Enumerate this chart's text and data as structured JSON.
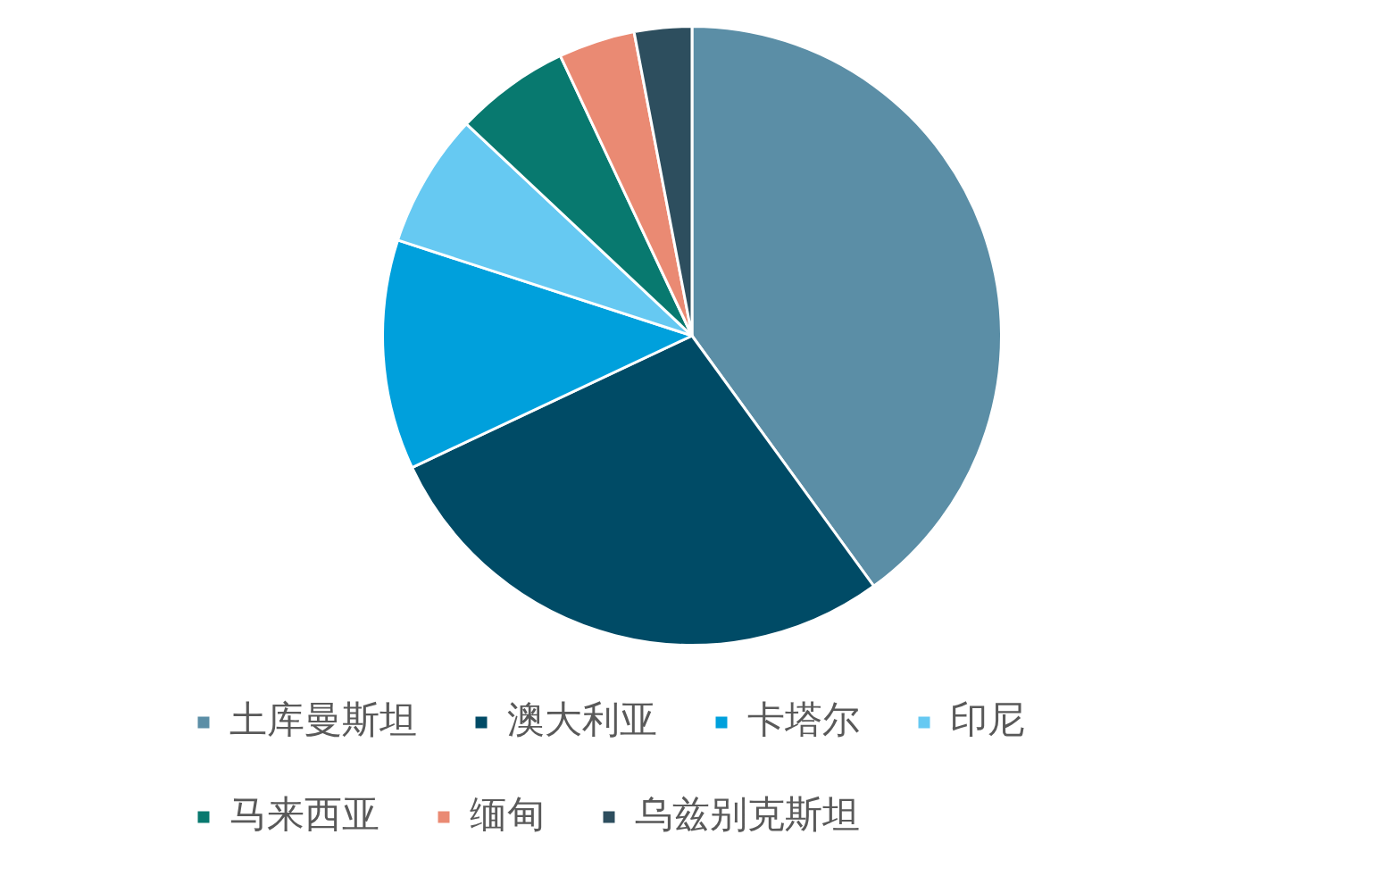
{
  "chart_data": {
    "type": "pie",
    "categories": [
      "土库曼斯坦",
      "澳大利亚",
      "卡塔尔",
      "印尼",
      "马来西亚",
      "缅甸",
      "乌兹别克斯坦"
    ],
    "values": [
      40,
      28,
      12,
      7,
      6,
      4,
      3
    ],
    "colors": [
      "#5b8ea6",
      "#004b66",
      "#00a0dc",
      "#66c9f2",
      "#08796f",
      "#ea8a73",
      "#2d4e5e"
    ],
    "legend": "bottom"
  }
}
